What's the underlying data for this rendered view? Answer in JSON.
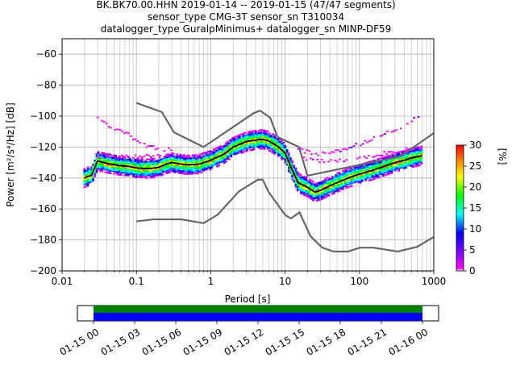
{
  "title": {
    "line1": "BK.BK70.00.HHN   2019-01-14 -- 2019-01-15  (47/47 segments)",
    "line2": "sensor_type CMG-3T sensor_sn T310034",
    "line3": "datalogger_type GuralpMinimus+ datalogger_sn MINP-DF59"
  },
  "colorbar": {
    "label": "[%]",
    "ticks": [
      "0",
      "5",
      "10",
      "15",
      "20",
      "25",
      "30"
    ],
    "values": [
      0,
      5,
      10,
      15,
      20,
      25,
      30
    ]
  },
  "chart_data": [
    {
      "type": "heatmap",
      "title": "BK.BK70.00.HHN   2019-01-14 -- 2019-01-15  (47/47 segments)",
      "xlabel": "Period [s]",
      "ylabel": "Power [m²/s⁴/Hz] [dB]",
      "xscale": "log",
      "xlim": [
        0.01,
        1000
      ],
      "ylim": [
        -200,
        -50
      ],
      "xticks": [
        0.01,
        0.1,
        1,
        10,
        100,
        1000
      ],
      "xtick_labels": [
        "0.01",
        "0.1",
        "1",
        "10",
        "100",
        "1000"
      ],
      "yticks": [
        -200,
        -180,
        -160,
        -140,
        -120,
        -100,
        -80,
        -60
      ],
      "ytick_labels": [
        "−200",
        "−180",
        "−160",
        "−140",
        "−120",
        "−100",
        "−80",
        "−60"
      ],
      "grid": true,
      "nlnm": {
        "x": [
          0.1,
          0.17,
          0.4,
          0.8,
          1.24,
          2.4,
          4.3,
          5.0,
          6.0,
          10.0,
          12.0,
          15.6,
          21.9,
          31.6,
          45.0,
          70.0,
          101.0,
          154.0,
          328.0,
          600.0,
          1000.0
        ],
        "y": [
          -168.0,
          -166.7,
          -166.7,
          -169.2,
          -163.7,
          -148.6,
          -141.1,
          -141.1,
          -149.0,
          -163.8,
          -166.2,
          -162.1,
          -177.5,
          -185.0,
          -187.5,
          -187.5,
          -185.0,
          -185.0,
          -187.5,
          -184.4,
          -178.0
        ]
      },
      "nhnm": {
        "x": [
          0.1,
          0.22,
          0.32,
          0.8,
          3.8,
          4.6,
          6.3,
          7.9,
          15.4,
          20.0,
          354.8,
          1000.0
        ],
        "y": [
          -91.5,
          -97.4,
          -110.5,
          -120.0,
          -98.0,
          -96.5,
          -101.0,
          -113.5,
          -120.0,
          -138.5,
          -126.0,
          -111.0
        ]
      },
      "mode": {
        "x": [
          0.02,
          0.025,
          0.03,
          0.04,
          0.06,
          0.08,
          0.1,
          0.15,
          0.2,
          0.25,
          0.3,
          0.4,
          0.5,
          0.7,
          1.0,
          1.5,
          2.0,
          3.0,
          4.0,
          5.0,
          6.0,
          8.0,
          10.0,
          12.0,
          15.0,
          20.0,
          25.0,
          30.0,
          40.0,
          50.0,
          70.0,
          100.0,
          150.0,
          200.0,
          300.0,
          400.0,
          500.0,
          700.0
        ],
        "y": [
          -140.0,
          -138.0,
          -129.0,
          -130.5,
          -132.0,
          -132.5,
          -133.5,
          -134.0,
          -133.0,
          -131.0,
          -130.0,
          -131.0,
          -131.5,
          -131.0,
          -128.5,
          -124.5,
          -120.0,
          -116.5,
          -115.5,
          -115.0,
          -116.0,
          -119.5,
          -124.0,
          -133.0,
          -143.0,
          -146.0,
          -149.0,
          -148.0,
          -145.0,
          -143.0,
          -140.0,
          -137.5,
          -135.0,
          -133.0,
          -130.0,
          -128.5,
          -127.0,
          -125.5
        ]
      },
      "scatter_bands": [
        {
          "x": [
            0.03,
            0.05,
            0.08,
            0.1,
            0.15,
            0.2,
            0.3
          ],
          "y": [
            -101.0,
            -108.0,
            -112.0,
            -116.0,
            -120.0,
            -121.0,
            -122.0
          ]
        },
        {
          "x": [
            0.03,
            0.06,
            0.1,
            0.2,
            0.4,
            0.8
          ],
          "y": [
            -126.0,
            -126.5,
            -126.5,
            -125.5,
            -126.0,
            -127.0
          ]
        },
        {
          "x": [
            15.0,
            25.0,
            40.0,
            70.0,
            120.0,
            200.0,
            400.0,
            700.0
          ],
          "y": [
            -121.0,
            -125.0,
            -124.0,
            -121.0,
            -117.0,
            -112.0,
            -106.0,
            -99.0
          ]
        },
        {
          "x": [
            18.0,
            30.0,
            50.0,
            90.0,
            150.0,
            300.0,
            700.0
          ],
          "y": [
            -127.0,
            -129.0,
            -129.0,
            -127.0,
            -125.5,
            -123.0,
            -120.0
          ]
        }
      ]
    },
    {
      "type": "bar",
      "title": "",
      "xlabel": "",
      "ylabel": "",
      "xlim": [
        "01-15 00",
        "01-16 00"
      ],
      "xtick_labels": [
        "01-15 00",
        "01-15 03",
        "01-15 06",
        "01-15 09",
        "01-15 12",
        "01-15 15",
        "01-15 18",
        "01-15 21",
        "01-16 00"
      ],
      "coverage": [
        {
          "color": "#008000",
          "start": "01-15 00",
          "end": "01-16 00"
        },
        {
          "color": "#0000ff",
          "start": "01-15 00",
          "end": "01-16 00"
        }
      ]
    }
  ]
}
